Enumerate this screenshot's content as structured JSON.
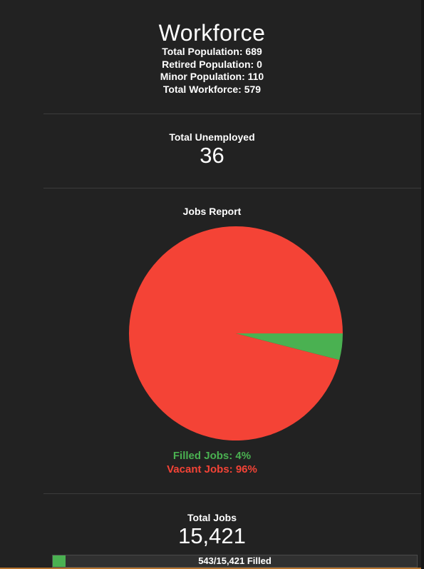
{
  "header": {
    "title": "Workforce",
    "stats": [
      "Total Population: 689",
      "Retired Population: 0",
      "Minor Population: 110",
      "Total Workforce: 579"
    ]
  },
  "unemployment": {
    "label": "Total Unemployed",
    "value": "36"
  },
  "jobs_report": {
    "title": "Jobs Report",
    "filled_label": "Filled Jobs: 4%",
    "vacant_label": "Vacant Jobs: 96%"
  },
  "chart_data": {
    "type": "pie",
    "title": "Jobs Report",
    "slices": [
      {
        "name": "Filled Jobs",
        "value": 4,
        "color": "#4ab151"
      },
      {
        "name": "Vacant Jobs",
        "value": 96,
        "color": "#f44336"
      }
    ]
  },
  "total_jobs": {
    "label": "Total Jobs",
    "value": "15,421",
    "progress_text": "543/15,421 Filled",
    "filled": 543,
    "total": 15421,
    "fill_color": "#4ab151"
  }
}
